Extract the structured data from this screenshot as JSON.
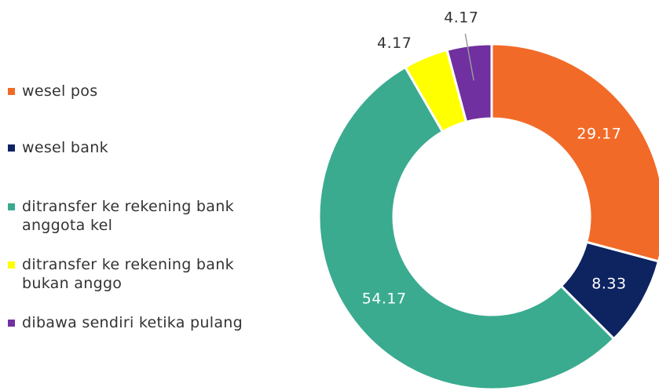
{
  "chart_data": {
    "type": "donut",
    "categories": [
      "wesel pos",
      "wesel bank",
      "ditransfer ke rekening bank anggota kel",
      "ditransfer ke rekening bank bukan anggo",
      "dibawa sendiri ketika pulang"
    ],
    "values": [
      29.17,
      8.33,
      54.17,
      4.17,
      4.17
    ],
    "colors": [
      "#f26a27",
      "#0e2461",
      "#3aab8f",
      "#ffff00",
      "#7030a0"
    ],
    "legend": "left"
  }
}
